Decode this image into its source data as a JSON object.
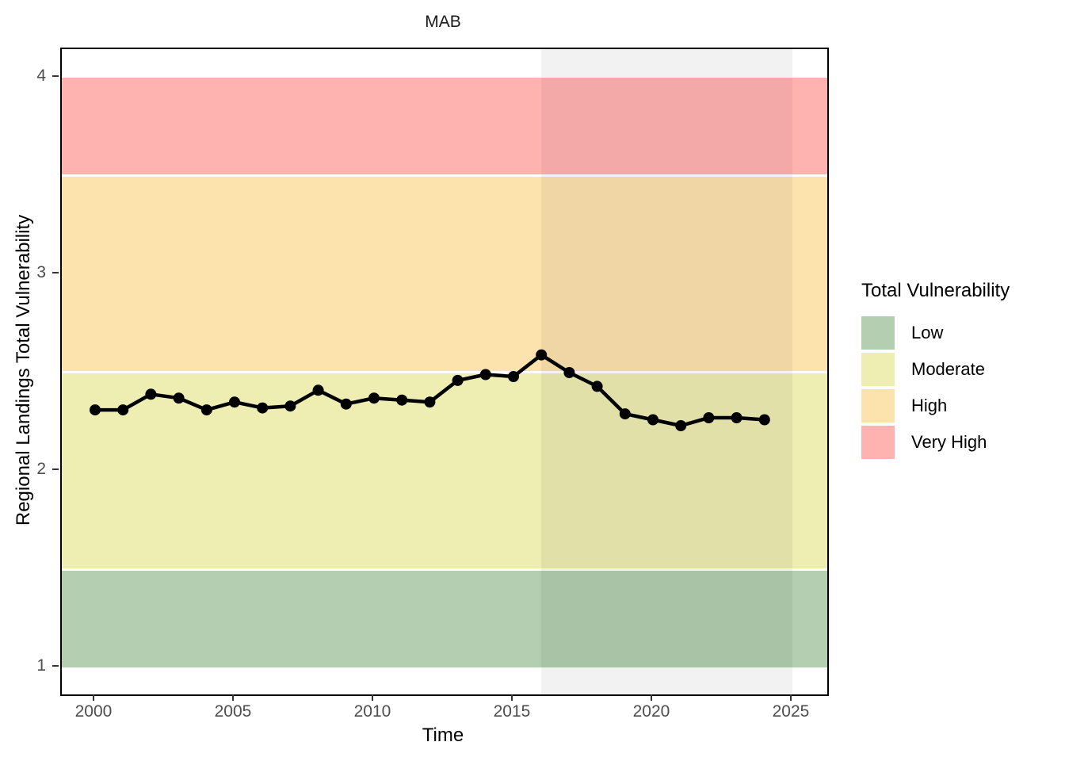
{
  "title": "MAB",
  "x_axis": {
    "label": "Time"
  },
  "y_axis": {
    "label": "Regional Landings Total Vulnerability"
  },
  "legend": {
    "title": "Total Vulnerability",
    "items": [
      {
        "label": "Low",
        "color_key": "low"
      },
      {
        "label": "Moderate",
        "color_key": "moderate"
      },
      {
        "label": "High",
        "color_key": "high"
      },
      {
        "label": "Very High",
        "color_key": "very_high"
      }
    ]
  },
  "colors": {
    "low": "#b3ceb0",
    "moderate": "#eeedb2",
    "high": "#fce2ad",
    "very_high": "#ffb3b1",
    "line": "#000000",
    "shade": "rgba(0,0,0,0.05)",
    "tick": "#333333",
    "tick_label": "#4d4d4d"
  },
  "chart_data": {
    "type": "line",
    "title": "MAB",
    "xlabel": "Time",
    "ylabel": "Regional Landings Total Vulnerability",
    "x": [
      2000,
      2001,
      2002,
      2003,
      2004,
      2005,
      2006,
      2007,
      2008,
      2009,
      2010,
      2011,
      2012,
      2013,
      2014,
      2015,
      2016,
      2017,
      2018,
      2019,
      2020,
      2021,
      2022,
      2023,
      2024
    ],
    "values": [
      2.31,
      2.31,
      2.39,
      2.37,
      2.31,
      2.35,
      2.32,
      2.33,
      2.41,
      2.34,
      2.37,
      2.36,
      2.35,
      2.46,
      2.49,
      2.48,
      2.59,
      2.5,
      2.43,
      2.29,
      2.26,
      2.23,
      2.27,
      2.27,
      2.26
    ],
    "xticks": [
      2000,
      2005,
      2010,
      2015,
      2020,
      2025
    ],
    "yticks": [
      1,
      2,
      3,
      4
    ],
    "xlim": [
      1998.807,
      2026.25
    ],
    "ylim": [
      0.863,
      4.145
    ],
    "bands": [
      {
        "label": "Low",
        "from": 1.0,
        "to": 1.5,
        "color_key": "low"
      },
      {
        "label": "Moderate",
        "from": 1.5,
        "to": 2.5,
        "color_key": "moderate"
      },
      {
        "label": "High",
        "from": 2.5,
        "to": 3.5,
        "color_key": "high"
      },
      {
        "label": "Very High",
        "from": 3.5,
        "to": 4.0,
        "color_key": "very_high"
      }
    ],
    "shaded_x_region": {
      "from": 2016,
      "to": 2025
    },
    "legend_position": "right",
    "grid": false,
    "point_radius": 7,
    "line_width": 4.5
  }
}
